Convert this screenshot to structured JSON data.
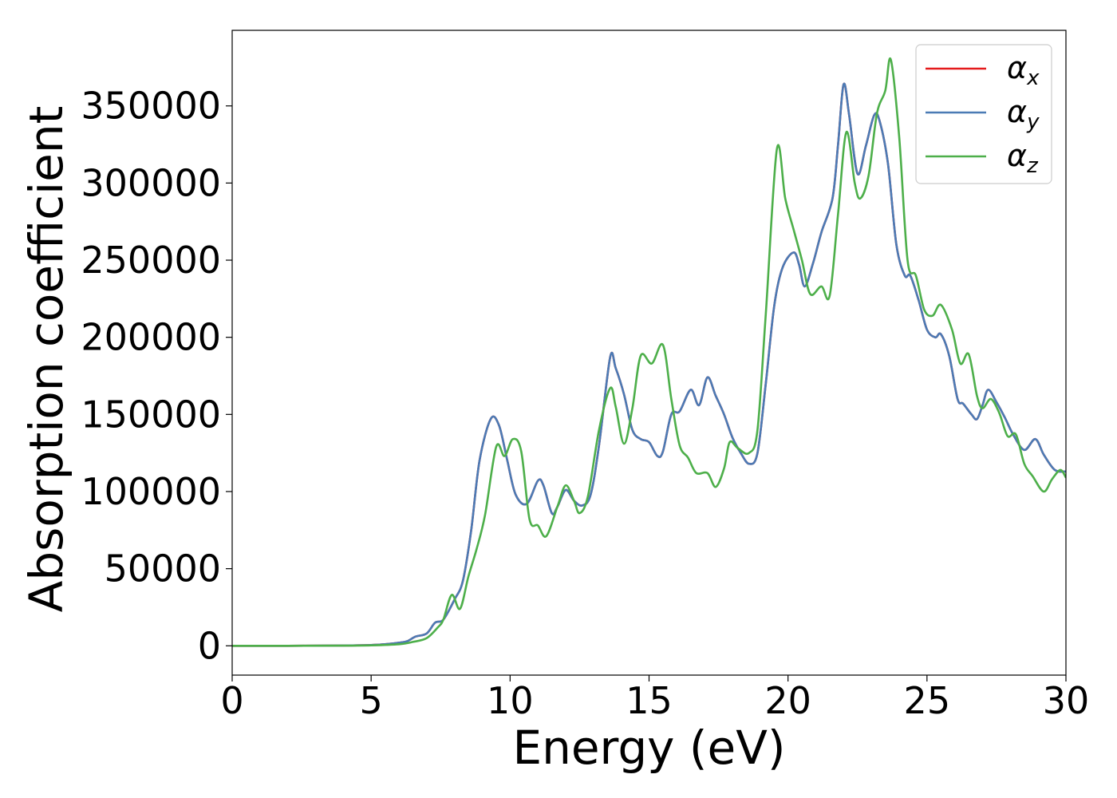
{
  "chart_data": {
    "type": "line",
    "title": "",
    "xlabel": "Energy (eV)",
    "ylabel": "Absorption coefficient",
    "xlim": [
      0,
      30
    ],
    "ylim": [
      -19000,
      399000
    ],
    "xticks": [
      0,
      5,
      10,
      15,
      20,
      25,
      30
    ],
    "yticks": [
      0,
      50000,
      100000,
      150000,
      200000,
      250000,
      300000,
      350000
    ],
    "grid": false,
    "legend": "top-right",
    "series": [
      {
        "name": "α",
        "sub": "x",
        "color": "#e41a1c",
        "points": [
          [
            0,
            0
          ],
          [
            2,
            0
          ],
          [
            4,
            200
          ],
          [
            5,
            500
          ],
          [
            5.5,
            1000
          ],
          [
            6,
            2000
          ],
          [
            6.3,
            3000
          ],
          [
            6.6,
            6000
          ],
          [
            7,
            8000
          ],
          [
            7.3,
            15000
          ],
          [
            7.6,
            17000
          ],
          [
            8,
            30000
          ],
          [
            8.3,
            42000
          ],
          [
            8.6,
            75000
          ],
          [
            8.9,
            120000
          ],
          [
            9.3,
            147000
          ],
          [
            9.6,
            143000
          ],
          [
            9.9,
            120000
          ],
          [
            10.2,
            98000
          ],
          [
            10.6,
            92000
          ],
          [
            11,
            107000
          ],
          [
            11.2,
            104000
          ],
          [
            11.5,
            86000
          ],
          [
            11.7,
            90000
          ],
          [
            12,
            101000
          ],
          [
            12.3,
            94000
          ],
          [
            12.6,
            91000
          ],
          [
            12.9,
            98000
          ],
          [
            13.2,
            130000
          ],
          [
            13.6,
            187000
          ],
          [
            13.8,
            180000
          ],
          [
            14.1,
            163000
          ],
          [
            14.4,
            140000
          ],
          [
            14.7,
            134000
          ],
          [
            15,
            132000
          ],
          [
            15.3,
            123000
          ],
          [
            15.5,
            126000
          ],
          [
            15.8,
            150000
          ],
          [
            16.1,
            152000
          ],
          [
            16.5,
            166000
          ],
          [
            16.8,
            156000
          ],
          [
            17.1,
            174000
          ],
          [
            17.4,
            162000
          ],
          [
            17.7,
            150000
          ],
          [
            18,
            135000
          ],
          [
            18.3,
            125000
          ],
          [
            18.6,
            118000
          ],
          [
            18.9,
            125000
          ],
          [
            19.2,
            170000
          ],
          [
            19.5,
            220000
          ],
          [
            19.8,
            245000
          ],
          [
            20.2,
            255000
          ],
          [
            20.4,
            247000
          ],
          [
            20.6,
            233000
          ],
          [
            20.9,
            248000
          ],
          [
            21.2,
            268000
          ],
          [
            21.6,
            290000
          ],
          [
            21.8,
            325000
          ],
          [
            22,
            364000
          ],
          [
            22.2,
            344000
          ],
          [
            22.5,
            306000
          ],
          [
            22.8,
            324000
          ],
          [
            23.1,
            344000
          ],
          [
            23.3,
            340000
          ],
          [
            23.6,
            312000
          ],
          [
            23.9,
            260000
          ],
          [
            24.2,
            240000
          ],
          [
            24.4,
            240000
          ],
          [
            24.7,
            224000
          ],
          [
            25,
            205000
          ],
          [
            25.3,
            200000
          ],
          [
            25.5,
            202000
          ],
          [
            25.8,
            188000
          ],
          [
            26.1,
            160000
          ],
          [
            26.3,
            157000
          ],
          [
            26.6,
            150000
          ],
          [
            26.8,
            147000
          ],
          [
            27,
            156000
          ],
          [
            27.2,
            166000
          ],
          [
            27.5,
            158000
          ],
          [
            27.8,
            148000
          ],
          [
            28.1,
            137000
          ],
          [
            28.5,
            127000
          ],
          [
            28.9,
            134000
          ],
          [
            29.2,
            124000
          ],
          [
            29.6,
            114000
          ],
          [
            30,
            113000
          ]
        ]
      },
      {
        "name": "α",
        "sub": "y",
        "color": "#4b7bb5",
        "points": [
          [
            0,
            0
          ],
          [
            2,
            0
          ],
          [
            4,
            200
          ],
          [
            5,
            500
          ],
          [
            5.5,
            1000
          ],
          [
            6,
            2000
          ],
          [
            6.3,
            3000
          ],
          [
            6.6,
            6000
          ],
          [
            7,
            8000
          ],
          [
            7.3,
            15000
          ],
          [
            7.6,
            17000
          ],
          [
            8,
            30000
          ],
          [
            8.3,
            42000
          ],
          [
            8.6,
            75000
          ],
          [
            8.9,
            120000
          ],
          [
            9.3,
            147000
          ],
          [
            9.6,
            143000
          ],
          [
            9.9,
            120000
          ],
          [
            10.2,
            98000
          ],
          [
            10.6,
            92000
          ],
          [
            11,
            107000
          ],
          [
            11.2,
            104000
          ],
          [
            11.5,
            86000
          ],
          [
            11.7,
            90000
          ],
          [
            12,
            101000
          ],
          [
            12.3,
            94000
          ],
          [
            12.6,
            91000
          ],
          [
            12.9,
            98000
          ],
          [
            13.2,
            130000
          ],
          [
            13.6,
            187000
          ],
          [
            13.8,
            180000
          ],
          [
            14.1,
            163000
          ],
          [
            14.4,
            140000
          ],
          [
            14.7,
            134000
          ],
          [
            15,
            132000
          ],
          [
            15.3,
            123000
          ],
          [
            15.5,
            126000
          ],
          [
            15.8,
            150000
          ],
          [
            16.1,
            152000
          ],
          [
            16.5,
            166000
          ],
          [
            16.8,
            156000
          ],
          [
            17.1,
            174000
          ],
          [
            17.4,
            162000
          ],
          [
            17.7,
            150000
          ],
          [
            18,
            135000
          ],
          [
            18.3,
            125000
          ],
          [
            18.6,
            118000
          ],
          [
            18.9,
            125000
          ],
          [
            19.2,
            170000
          ],
          [
            19.5,
            220000
          ],
          [
            19.8,
            245000
          ],
          [
            20.2,
            255000
          ],
          [
            20.4,
            247000
          ],
          [
            20.6,
            233000
          ],
          [
            20.9,
            248000
          ],
          [
            21.2,
            268000
          ],
          [
            21.6,
            290000
          ],
          [
            21.8,
            325000
          ],
          [
            22,
            364000
          ],
          [
            22.2,
            344000
          ],
          [
            22.5,
            306000
          ],
          [
            22.8,
            324000
          ],
          [
            23.1,
            344000
          ],
          [
            23.3,
            340000
          ],
          [
            23.6,
            312000
          ],
          [
            23.9,
            260000
          ],
          [
            24.2,
            240000
          ],
          [
            24.4,
            240000
          ],
          [
            24.7,
            224000
          ],
          [
            25,
            205000
          ],
          [
            25.3,
            200000
          ],
          [
            25.5,
            202000
          ],
          [
            25.8,
            188000
          ],
          [
            26.1,
            160000
          ],
          [
            26.3,
            157000
          ],
          [
            26.6,
            150000
          ],
          [
            26.8,
            147000
          ],
          [
            27,
            156000
          ],
          [
            27.2,
            166000
          ],
          [
            27.5,
            158000
          ],
          [
            27.8,
            148000
          ],
          [
            28.1,
            137000
          ],
          [
            28.5,
            127000
          ],
          [
            28.9,
            134000
          ],
          [
            29.2,
            124000
          ],
          [
            29.6,
            114000
          ],
          [
            30,
            113000
          ]
        ]
      },
      {
        "name": "α",
        "sub": "z",
        "color": "#4daf4a",
        "points": [
          [
            0,
            0
          ],
          [
            2,
            0
          ],
          [
            4,
            100
          ],
          [
            5,
            300
          ],
          [
            6,
            1000
          ],
          [
            6.5,
            2500
          ],
          [
            7,
            5000
          ],
          [
            7.4,
            12000
          ],
          [
            7.6,
            17000
          ],
          [
            7.9,
            33000
          ],
          [
            8.2,
            24000
          ],
          [
            8.5,
            45000
          ],
          [
            8.8,
            63000
          ],
          [
            9.1,
            85000
          ],
          [
            9.5,
            129000
          ],
          [
            9.8,
            123000
          ],
          [
            10.1,
            134000
          ],
          [
            10.4,
            126000
          ],
          [
            10.7,
            82000
          ],
          [
            11,
            78000
          ],
          [
            11.3,
            71000
          ],
          [
            11.7,
            90000
          ],
          [
            12,
            104000
          ],
          [
            12.3,
            94000
          ],
          [
            12.5,
            86000
          ],
          [
            12.8,
            97000
          ],
          [
            13.2,
            140000
          ],
          [
            13.6,
            167000
          ],
          [
            13.8,
            155000
          ],
          [
            14.1,
            131000
          ],
          [
            14.4,
            154000
          ],
          [
            14.7,
            188000
          ],
          [
            15.1,
            183000
          ],
          [
            15.5,
            195000
          ],
          [
            15.8,
            160000
          ],
          [
            16.1,
            130000
          ],
          [
            16.4,
            122000
          ],
          [
            16.7,
            112000
          ],
          [
            17.1,
            112000
          ],
          [
            17.4,
            103000
          ],
          [
            17.7,
            115000
          ],
          [
            17.9,
            132000
          ],
          [
            18.2,
            128000
          ],
          [
            18.6,
            125000
          ],
          [
            18.9,
            140000
          ],
          [
            19.2,
            215000
          ],
          [
            19.6,
            322000
          ],
          [
            19.9,
            290000
          ],
          [
            20.2,
            270000
          ],
          [
            20.5,
            250000
          ],
          [
            20.8,
            228000
          ],
          [
            21.2,
            233000
          ],
          [
            21.5,
            227000
          ],
          [
            21.8,
            280000
          ],
          [
            22.1,
            333000
          ],
          [
            22.4,
            300000
          ],
          [
            22.6,
            290000
          ],
          [
            22.9,
            305000
          ],
          [
            23.2,
            345000
          ],
          [
            23.5,
            360000
          ],
          [
            23.7,
            380000
          ],
          [
            24,
            330000
          ],
          [
            24.3,
            250000
          ],
          [
            24.6,
            240000
          ],
          [
            24.9,
            218000
          ],
          [
            25.2,
            214000
          ],
          [
            25.5,
            221000
          ],
          [
            25.9,
            205000
          ],
          [
            26.2,
            183000
          ],
          [
            26.5,
            189000
          ],
          [
            26.8,
            162000
          ],
          [
            27,
            154000
          ],
          [
            27.3,
            160000
          ],
          [
            27.6,
            151000
          ],
          [
            27.9,
            136000
          ],
          [
            28.2,
            137000
          ],
          [
            28.5,
            118000
          ],
          [
            28.8,
            110000
          ],
          [
            29.2,
            100000
          ],
          [
            29.5,
            108000
          ],
          [
            29.8,
            114000
          ],
          [
            30,
            109000
          ]
        ]
      }
    ]
  }
}
